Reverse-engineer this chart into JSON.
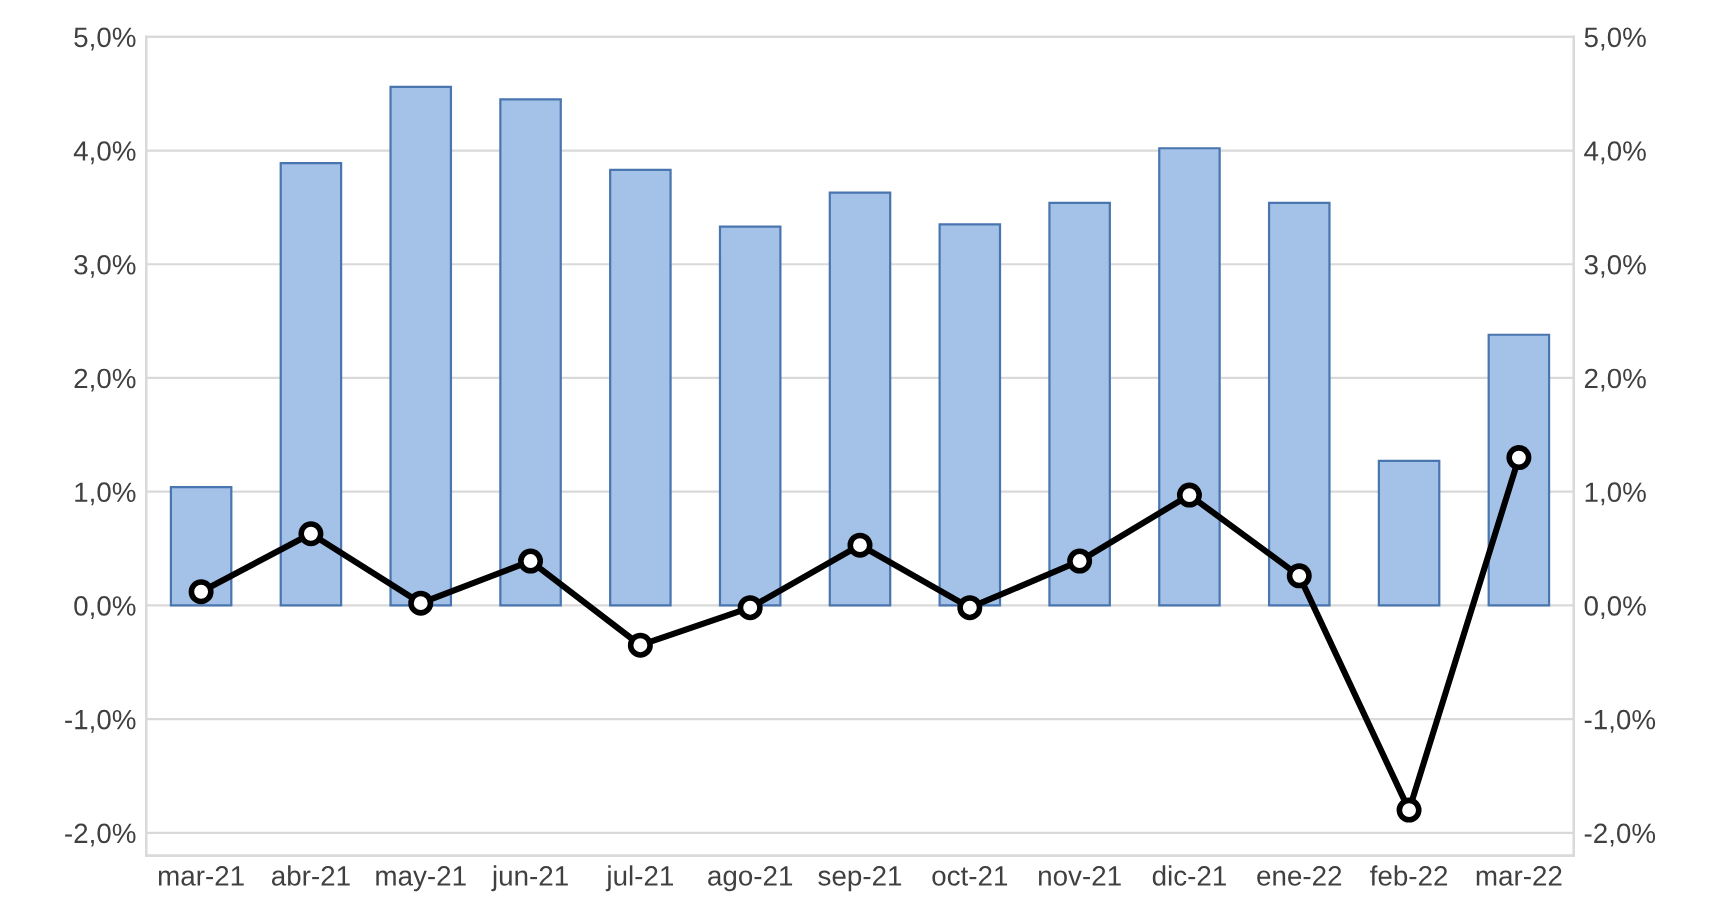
{
  "chart_data": {
    "type": "bar",
    "categories": [
      "mar-21",
      "abr-21",
      "may-21",
      "jun-21",
      "jul-21",
      "ago-21",
      "sep-21",
      "oct-21",
      "nov-21",
      "dic-21",
      "ene-22",
      "feb-22",
      "mar-22"
    ],
    "series": [
      {
        "color": "#a4c2e8",
        "values": [
          1.04,
          3.89,
          4.56,
          4.45,
          3.83,
          3.33,
          3.63,
          3.35,
          3.54,
          4.02,
          3.54,
          1.27,
          2.38
        ]
      },
      {
        "type": "line",
        "axis": "y2",
        "color": "#000000",
        "marker": "circle",
        "line_style": "solid",
        "values": [
          0.12,
          0.63,
          0.02,
          0.39,
          -0.35,
          -0.02,
          0.53,
          -0.02,
          0.39,
          0.97,
          0.26,
          -1.8,
          1.3
        ]
      }
    ],
    "ylim": [
      -2.2,
      5.0
    ],
    "yticks": [
      {
        "value": -2,
        "label": "-2,0%"
      },
      {
        "value": -1,
        "label": "-1,0%"
      },
      {
        "value": 0,
        "label": "0,0%"
      },
      {
        "value": 1,
        "label": "1,0%"
      },
      {
        "value": 2,
        "label": "2,0%"
      },
      {
        "value": 3,
        "label": "3,0%"
      },
      {
        "value": 4,
        "label": "4,0%"
      },
      {
        "value": 5,
        "label": "5,0%"
      }
    ],
    "y2lim": [
      -2.2,
      5.0
    ],
    "y2ticks": [
      {
        "value": -2,
        "label": "-2,0%"
      },
      {
        "value": -1,
        "label": "-1,0%"
      },
      {
        "value": 0,
        "label": "0,0%"
      },
      {
        "value": 1,
        "label": "1,0%"
      },
      {
        "value": 2,
        "label": "2,0%"
      },
      {
        "value": 3,
        "label": "3,0%"
      },
      {
        "value": 4,
        "label": "4,0%"
      },
      {
        "value": 5,
        "label": "5,0%"
      }
    ],
    "grid": "y",
    "legend": false
  }
}
